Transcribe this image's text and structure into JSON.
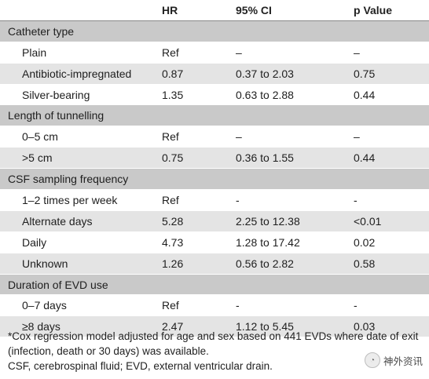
{
  "table": {
    "headers": [
      "",
      "HR",
      "95% CI",
      "p Value"
    ],
    "groups": [
      {
        "title": "Catheter type",
        "rows": [
          {
            "label": "Plain",
            "hr": "Ref",
            "ci": "–",
            "p": "–"
          },
          {
            "label": "Antibiotic-impregnated",
            "hr": "0.87",
            "ci": "0.37 to 2.03",
            "p": "0.75"
          },
          {
            "label": "Silver-bearing",
            "hr": "1.35",
            "ci": "0.63 to 2.88",
            "p": "0.44"
          }
        ]
      },
      {
        "title": "Length of tunnelling",
        "rows": [
          {
            "label": "0–5 cm",
            "hr": "Ref",
            "ci": "–",
            "p": "–"
          },
          {
            "label": ">5 cm",
            "hr": "0.75",
            "ci": "0.36 to 1.55",
            "p": "0.44"
          }
        ]
      },
      {
        "title": "CSF sampling frequency",
        "rows": [
          {
            "label": "1–2 times per week",
            "hr": "Ref",
            "ci": "-",
            "p": "-"
          },
          {
            "label": "Alternate days",
            "hr": "5.28",
            "ci": "2.25 to 12.38",
            "p": "<0.01"
          },
          {
            "label": "Daily",
            "hr": "4.73",
            "ci": "1.28 to 17.42",
            "p": "0.02"
          },
          {
            "label": "Unknown",
            "hr": "1.26",
            "ci": "0.56 to 2.82",
            "p": "0.58"
          }
        ]
      },
      {
        "title": "Duration of EVD use",
        "rows": [
          {
            "label": "0–7 days",
            "hr": "Ref",
            "ci": "-",
            "p": "-"
          },
          {
            "label": "≥8 days",
            "hr": "2.47",
            "ci": "1.12 to 5.45",
            "p": "0.03"
          }
        ]
      }
    ]
  },
  "footnotes": {
    "line1": "*Cox regression model adjusted for age and sex based on 441 EVDs where date of exit (infection, death or 30 days) was available.",
    "line2": "CSF, cerebrospinal fluid; EVD, external ventricular drain."
  },
  "watermark": {
    "icon": "wechat-icon",
    "text": "神外资讯"
  }
}
